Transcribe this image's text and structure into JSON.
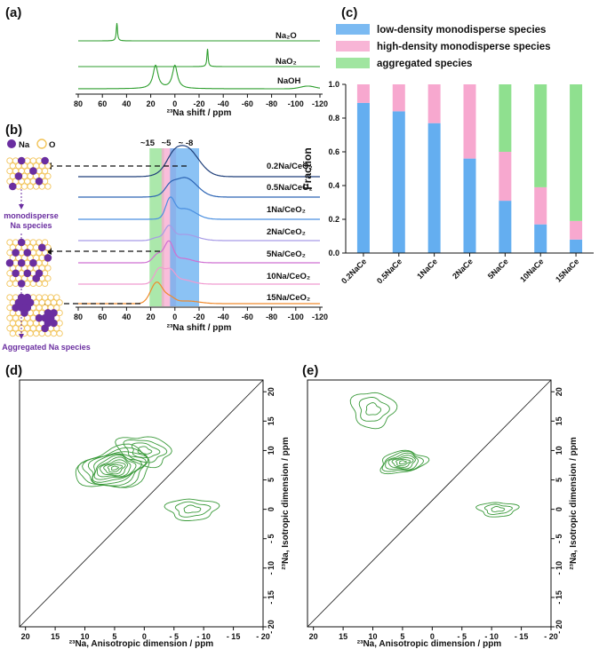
{
  "panels": {
    "a": "(a)",
    "b": "(b)",
    "c": "(c)",
    "d": "(d)",
    "e": "(e)"
  },
  "colors": {
    "green_ref": "#2e9e2e",
    "low_density": "#64aef0",
    "high_density": "#f7a8cf",
    "aggregated": "#8fe08f",
    "purple": "#6a2ea0",
    "yellow_cell": "#f2c45a",
    "contour": "#3a9a3a"
  },
  "panel_a": {
    "xlabel": "²³Na shift / ppm",
    "ticks": [
      "80",
      "60",
      "40",
      "20",
      "0",
      "-20",
      "-40",
      "-60",
      "-80",
      "-100",
      "-120"
    ],
    "traces": [
      {
        "label": "Na₂O",
        "peak_ppm": 48
      },
      {
        "label": "NaO₂",
        "peak_ppm": -27
      },
      {
        "label": "NaOH",
        "peak_ppm": [
          16,
          0
        ]
      }
    ]
  },
  "panel_b": {
    "xlabel": "²³Na shift / ppm",
    "ticks": [
      "80",
      "60",
      "40",
      "20",
      "0",
      "-20",
      "-40",
      "-60",
      "-80",
      "-100",
      "-120"
    ],
    "band_labels": [
      "~15",
      "~5",
      "~ -8"
    ],
    "bands": [
      {
        "center_ppm": 15,
        "color": "aggregated"
      },
      {
        "center_ppm": 5,
        "color": "high_density"
      },
      {
        "center_ppm": -8,
        "color": "low_density"
      }
    ],
    "traces": [
      {
        "label": "0.2Na/CeO₂",
        "color": "#1f3f7a"
      },
      {
        "label": "0.5Na/CeO₂",
        "color": "#2c64b4"
      },
      {
        "label": "1Na/CeO₂",
        "color": "#4a8fe0"
      },
      {
        "label": "2Na/CeO₂",
        "color": "#a69ae6"
      },
      {
        "label": "5Na/CeO₂",
        "color": "#cf6fd2"
      },
      {
        "label": "10Na/CeO₂",
        "color": "#f19ad0"
      },
      {
        "label": "15Na/CeO₂",
        "color": "#f08a2c"
      }
    ],
    "schematic": {
      "legend_na": "Na",
      "legend_o": "O",
      "label_mono": "monodisperse\nNa species",
      "label_mono_1": "monodisperse",
      "label_mono_2": "Na species",
      "label_agg": "Aggregated Na species"
    }
  },
  "chart_data": [
    {
      "type": "bar",
      "title": "",
      "xlabel": "",
      "ylabel": "Fraction",
      "ylim": [
        0,
        1.0
      ],
      "yticks": [
        "0.0",
        "0.2",
        "0.4",
        "0.6",
        "0.8",
        "1.0"
      ],
      "categories": [
        "0.2NaCe",
        "0.5NaCe",
        "1NaCe",
        "2NaCe",
        "5NaCe",
        "10NaCe",
        "15NaCe"
      ],
      "stacked": true,
      "legend_position": "top",
      "series": [
        {
          "name": "low-density monodisperse species",
          "color": "#64aef0",
          "values": [
            0.89,
            0.84,
            0.77,
            0.56,
            0.31,
            0.17,
            0.08
          ]
        },
        {
          "name": "high-density monodisperse species",
          "color": "#f7a8cf",
          "values": [
            0.11,
            0.16,
            0.23,
            0.44,
            0.29,
            0.22,
            0.11
          ]
        },
        {
          "name": "aggregated species",
          "color": "#8fe08f",
          "values": [
            0.0,
            0.0,
            0.0,
            0.0,
            0.4,
            0.61,
            0.81
          ]
        }
      ]
    },
    {
      "type": "heatmap",
      "title": "",
      "xlabel": "²³Na, Anisotropic dimension / ppm",
      "ylabel": "²³Na, Isotropic dimension / ppm",
      "xlim": [
        21,
        -20
      ],
      "ylim": [
        22,
        -20
      ],
      "xticks": [
        "20",
        "15",
        "10",
        "5",
        "0",
        "- 5",
        "- 10",
        "- 15",
        "- 20"
      ],
      "yticks": [
        "- 20",
        "- 15",
        "- 10",
        "- 5",
        "0",
        "5",
        "10",
        "15",
        "20"
      ],
      "contour_centers": [
        {
          "x": 5,
          "y": 7,
          "levels": 11
        },
        {
          "x": 0,
          "y": 10,
          "levels": 4
        },
        {
          "x": -8,
          "y": 0,
          "levels": 3
        }
      ]
    },
    {
      "type": "heatmap",
      "title": "",
      "xlabel": "²³Na, Anisotropic dimension / ppm",
      "ylabel": "²³Na, Isotropic dimension / ppm",
      "xlim": [
        21,
        -20
      ],
      "ylim": [
        22,
        -20
      ],
      "xticks": [
        "20",
        "15",
        "10",
        "5",
        "0",
        "- 5",
        "- 10",
        "- 15",
        "- 20"
      ],
      "yticks": [
        "- 20",
        "- 15",
        "- 10",
        "- 5",
        "0",
        "5",
        "10",
        "15",
        "20"
      ],
      "contour_centers": [
        {
          "x": 5,
          "y": 8,
          "levels": 7
        },
        {
          "x": 10,
          "y": 17,
          "levels": 3
        },
        {
          "x": -11,
          "y": 0,
          "levels": 3
        }
      ]
    }
  ]
}
